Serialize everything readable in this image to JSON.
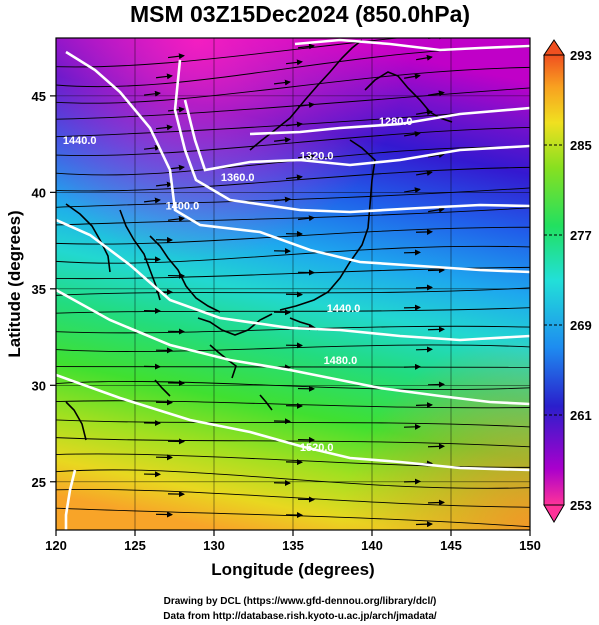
{
  "title": "MSM 03Z15Dec2024 (850.0hPa)",
  "footer": {
    "line1": "Drawing by DCL (https://www.gfd-dennou.org/library/dcl/)",
    "line2": "Data from http://database.rish.kyoto-u.ac.jp/arch/jmadata/"
  },
  "colorbar": {
    "min": 253,
    "max": 293,
    "ticks": [
      "293",
      "285",
      "277",
      "269",
      "261",
      "253"
    ],
    "colors": [
      "#ff3399",
      "#aa00cc",
      "#2a1fcc",
      "#1e8cf0",
      "#22e0d8",
      "#22e060",
      "#88e020",
      "#f0e020",
      "#f8a020",
      "#f05020"
    ]
  },
  "chart_data": {
    "type": "map",
    "title": "MSM 03Z15Dec2024 (850.0hPa)",
    "xlabel": "Longitude (degrees)",
    "ylabel": "Latitude  (degrees)",
    "xlim": [
      120,
      150
    ],
    "ylim": [
      22.5,
      48
    ],
    "xticks": [
      "120",
      "125",
      "130",
      "135",
      "140",
      "145",
      "150"
    ],
    "yticks": [
      "25",
      "30",
      "35",
      "40",
      "45"
    ],
    "contour_labels": [
      {
        "text": "1280.0",
        "lon": 141.5,
        "lat": 43.5
      },
      {
        "text": "1320.0",
        "lon": 136.5,
        "lat": 41.7
      },
      {
        "text": "1360.0",
        "lon": 131.5,
        "lat": 40.6
      },
      {
        "text": "1400.0",
        "lon": 128.0,
        "lat": 39.1
      },
      {
        "text": "1440.0",
        "lon": 121.5,
        "lat": 42.5
      },
      {
        "text": "1440.0",
        "lon": 138.2,
        "lat": 33.8
      },
      {
        "text": "1480.0",
        "lon": 138.0,
        "lat": 31.1
      },
      {
        "text": "1520.0",
        "lon": 136.5,
        "lat": 26.6
      }
    ]
  }
}
